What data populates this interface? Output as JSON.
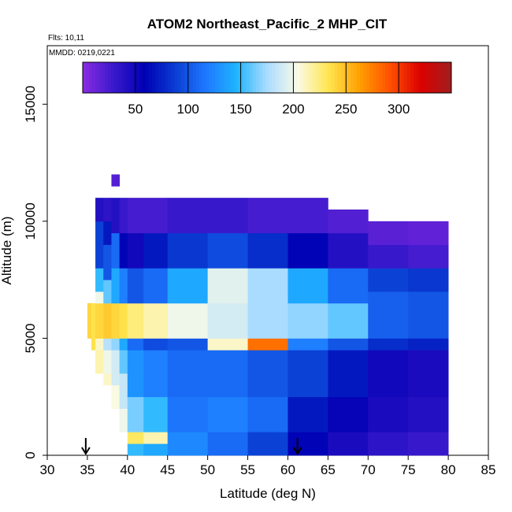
{
  "chart_data": {
    "type": "heatmap",
    "title": "ATOM2 Northeast_Pacific_2 MHP_CIT",
    "flights_label": "Flts: 10,11",
    "dates_label": "MMDD: 0219,0221",
    "xlabel": "Latitude (deg N)",
    "ylabel": "Altitude (m)",
    "xlim": [
      30,
      85
    ],
    "ylim": [
      0,
      17500
    ],
    "xticks": [
      30,
      35,
      40,
      45,
      50,
      55,
      60,
      65,
      70,
      75,
      80,
      85
    ],
    "yticks": [
      0,
      5000,
      10000,
      15000
    ],
    "colorbar": {
      "range": [
        0,
        350
      ],
      "ticks": [
        50,
        100,
        150,
        200,
        250,
        300
      ],
      "colors": [
        "#8a2be2",
        "#3a19cc",
        "#0000b4",
        "#0a3cd2",
        "#1e78ff",
        "#1eb4ff",
        "#aadcff",
        "#fafae6",
        "#ffe650",
        "#ffa000",
        "#ff5000",
        "#dc0000",
        "#a01e1e"
      ]
    },
    "arrows": [
      34.8,
      61.2
    ],
    "series_description": "MHP mixing ratio (colour scale) binned by latitude and altitude",
    "profiles": [
      {
        "lat_start": 35.0,
        "lat_end": 35.5,
        "cells": [
          [
            5000,
            6500,
            240
          ]
        ]
      },
      {
        "lat_start": 35.5,
        "lat_end": 36.0,
        "cells": [
          [
            4500,
            6500,
            235
          ]
        ]
      },
      {
        "lat_start": 36.0,
        "lat_end": 37.0,
        "cells": [
          [
            3500,
            4500,
            215
          ],
          [
            4500,
            5000,
            210
          ],
          [
            5000,
            6500,
            240
          ],
          [
            6500,
            7000,
            200
          ],
          [
            7000,
            8000,
            150
          ],
          [
            8000,
            10000,
            90
          ],
          [
            10000,
            11000,
            40
          ]
        ]
      },
      {
        "lat_start": 37.0,
        "lat_end": 38.0,
        "cells": [
          [
            3000,
            3500,
            210
          ],
          [
            3500,
            4500,
            200
          ],
          [
            4500,
            5000,
            180
          ],
          [
            5000,
            6500,
            245
          ],
          [
            6500,
            7500,
            160
          ],
          [
            7500,
            9000,
            100
          ],
          [
            9000,
            10000,
            70
          ],
          [
            10000,
            11000,
            35
          ]
        ]
      },
      {
        "lat_start": 38.0,
        "lat_end": 39.0,
        "cells": [
          [
            2000,
            3000,
            205
          ],
          [
            3000,
            4500,
            190
          ],
          [
            4500,
            5000,
            170
          ],
          [
            5000,
            6500,
            240
          ],
          [
            6500,
            8000,
            140
          ],
          [
            8000,
            9500,
            110
          ],
          [
            9500,
            11000,
            40
          ],
          [
            11500,
            12000,
            20
          ]
        ]
      },
      {
        "lat_start": 39.0,
        "lat_end": 40.0,
        "cells": [
          [
            1000,
            2000,
            200
          ],
          [
            2000,
            3500,
            185
          ],
          [
            3500,
            4500,
            160
          ],
          [
            4500,
            5000,
            140
          ],
          [
            5000,
            6500,
            235
          ],
          [
            6500,
            8000,
            120
          ],
          [
            8000,
            9500,
            60
          ],
          [
            9500,
            11000,
            30
          ]
        ]
      },
      {
        "lat_start": 40.0,
        "lat_end": 42.0,
        "cells": [
          [
            0,
            500,
            150
          ],
          [
            500,
            1000,
            230
          ],
          [
            1000,
            2500,
            165
          ],
          [
            2500,
            4500,
            130
          ],
          [
            4500,
            5000,
            110
          ],
          [
            5000,
            6500,
            225
          ],
          [
            6500,
            8000,
            100
          ],
          [
            8000,
            9500,
            50
          ],
          [
            9500,
            11000,
            25
          ]
        ]
      },
      {
        "lat_start": 42.0,
        "lat_end": 45.0,
        "cells": [
          [
            0,
            500,
            140
          ],
          [
            500,
            1000,
            215
          ],
          [
            1000,
            2500,
            150
          ],
          [
            2500,
            4500,
            120
          ],
          [
            4500,
            5000,
            95
          ],
          [
            5000,
            6500,
            215
          ],
          [
            6500,
            8000,
            110
          ],
          [
            8000,
            9500,
            70
          ],
          [
            9500,
            11000,
            25
          ]
        ]
      },
      {
        "lat_start": 45.0,
        "lat_end": 50.0,
        "cells": [
          [
            0,
            1000,
            125
          ],
          [
            1000,
            2500,
            115
          ],
          [
            2500,
            4500,
            110
          ],
          [
            4500,
            5000,
            100
          ],
          [
            5000,
            6500,
            200
          ],
          [
            6500,
            8000,
            140
          ],
          [
            8000,
            9500,
            85
          ],
          [
            9500,
            11000,
            30
          ]
        ]
      },
      {
        "lat_start": 50.0,
        "lat_end": 55.0,
        "cells": [
          [
            0,
            1000,
            110
          ],
          [
            1000,
            2500,
            120
          ],
          [
            2500,
            4500,
            110
          ],
          [
            4500,
            5000,
            210
          ],
          [
            5000,
            6500,
            190
          ],
          [
            6500,
            8000,
            195
          ],
          [
            8000,
            9500,
            95
          ],
          [
            9500,
            11000,
            30
          ]
        ]
      },
      {
        "lat_start": 55.0,
        "lat_end": 60.0,
        "cells": [
          [
            0,
            1000,
            90
          ],
          [
            1000,
            2500,
            110
          ],
          [
            2500,
            4500,
            100
          ],
          [
            4500,
            5000,
            280
          ],
          [
            5000,
            6500,
            175
          ],
          [
            6500,
            8000,
            175
          ],
          [
            8000,
            9500,
            80
          ],
          [
            9500,
            11000,
            25
          ]
        ]
      },
      {
        "lat_start": 60.0,
        "lat_end": 65.0,
        "cells": [
          [
            0,
            1000,
            60
          ],
          [
            1000,
            2500,
            70
          ],
          [
            2500,
            4500,
            90
          ],
          [
            4500,
            5000,
            120
          ],
          [
            5000,
            6500,
            170
          ],
          [
            6500,
            8000,
            140
          ],
          [
            8000,
            9500,
            60
          ],
          [
            9500,
            11000,
            25
          ]
        ]
      },
      {
        "lat_start": 65.0,
        "lat_end": 70.0,
        "cells": [
          [
            0,
            1000,
            45
          ],
          [
            1000,
            2500,
            55
          ],
          [
            2500,
            4500,
            70
          ],
          [
            4500,
            5000,
            100
          ],
          [
            5000,
            6500,
            160
          ],
          [
            6500,
            8000,
            110
          ],
          [
            8000,
            9500,
            40
          ],
          [
            9500,
            10500,
            20
          ]
        ]
      },
      {
        "lat_start": 70.0,
        "lat_end": 75.0,
        "cells": [
          [
            0,
            1000,
            35
          ],
          [
            1000,
            2500,
            45
          ],
          [
            2500,
            4500,
            50
          ],
          [
            4500,
            5000,
            80
          ],
          [
            5000,
            7000,
            105
          ],
          [
            7000,
            8000,
            90
          ],
          [
            8000,
            9000,
            30
          ],
          [
            9000,
            10000,
            18
          ]
        ]
      },
      {
        "lat_start": 75.0,
        "lat_end": 80.0,
        "cells": [
          [
            0,
            1000,
            30
          ],
          [
            1000,
            2500,
            40
          ],
          [
            2500,
            4500,
            45
          ],
          [
            4500,
            5000,
            75
          ],
          [
            5000,
            7000,
            100
          ],
          [
            7000,
            8000,
            85
          ],
          [
            8000,
            9000,
            25
          ],
          [
            9000,
            10000,
            15
          ]
        ]
      }
    ]
  }
}
